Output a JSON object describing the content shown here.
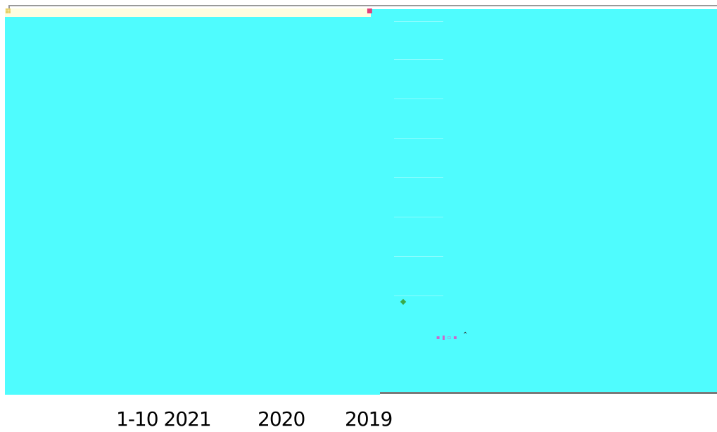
{
  "colors": {
    "panel": "#4ffcfe",
    "strip": "#fffde0",
    "border": "#7a7a7a"
  },
  "icons": {
    "corner": "corner-icon",
    "flag": "flag-icon",
    "chevron": "chevron-up-icon"
  },
  "labels": [
    "1-10 2021",
    "2020",
    "2019"
  ]
}
